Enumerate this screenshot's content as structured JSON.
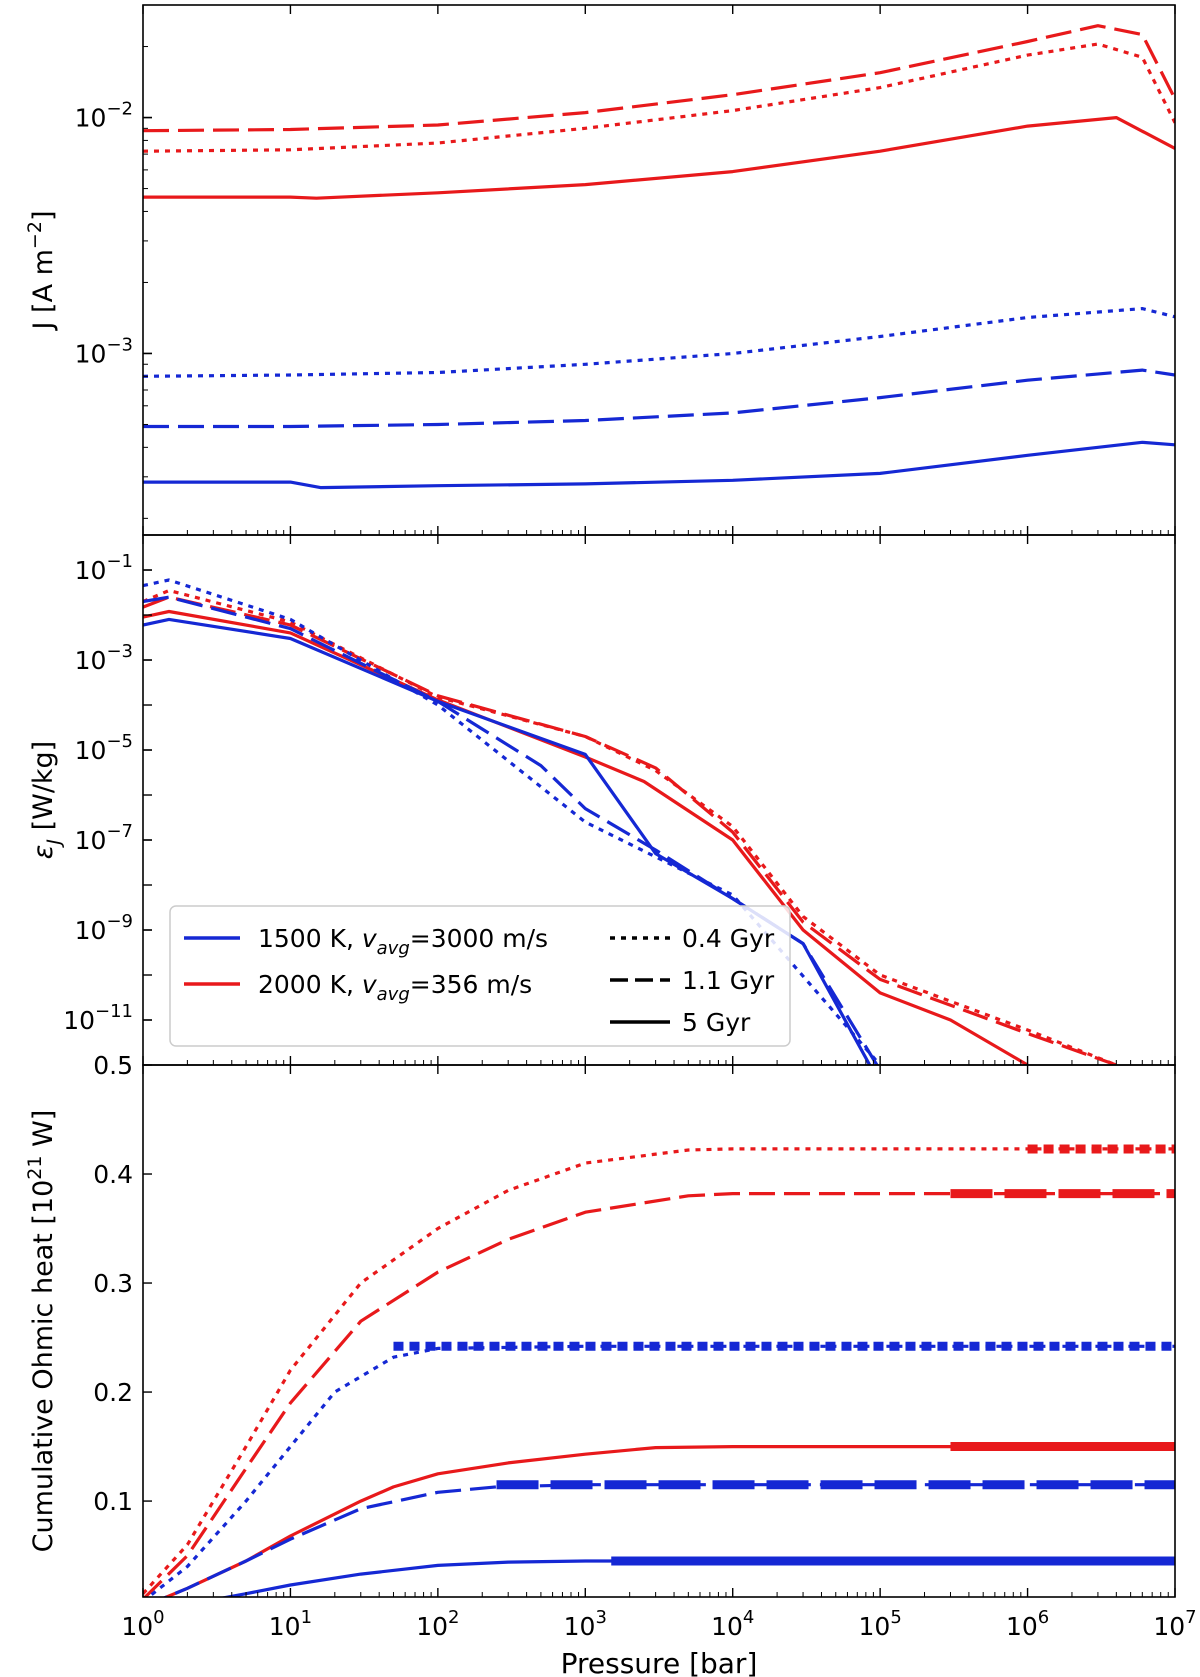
{
  "chart_data": [
    {
      "type": "line",
      "panel": "top",
      "xscale": "log",
      "yscale": "log",
      "xlim": [
        1,
        10000000
      ],
      "ylim": [
        0.00017,
        0.03
      ],
      "ylabel_main": "J [A m",
      "ylabel_sup": "−2",
      "ylabel_end": "]",
      "yticks": [
        {
          "value": 0.01,
          "base": "10",
          "exp": "−2"
        },
        {
          "value": 0.001,
          "base": "10",
          "exp": "−3"
        }
      ],
      "series": [
        {
          "name": "2000 K, 0.4 Gyr",
          "color": "#e8191b",
          "style": "dotted",
          "x": [
            1,
            10,
            100,
            1000,
            10000,
            100000,
            1000000,
            3000000,
            6000000,
            10000000
          ],
          "y": [
            0.0072,
            0.0073,
            0.0078,
            0.009,
            0.0107,
            0.0134,
            0.0184,
            0.0205,
            0.018,
            0.0095
          ]
        },
        {
          "name": "2000 K, 1.1 Gyr",
          "color": "#e8191b",
          "style": "dashed",
          "x": [
            1,
            10,
            100,
            1000,
            10000,
            100000,
            1000000,
            3000000,
            6000000,
            10000000
          ],
          "y": [
            0.0088,
            0.0089,
            0.0093,
            0.0105,
            0.0125,
            0.0155,
            0.021,
            0.0245,
            0.0225,
            0.012
          ]
        },
        {
          "name": "2000 K, 5 Gyr",
          "color": "#e8191b",
          "style": "solid",
          "x": [
            1,
            10,
            15,
            100,
            1000,
            10000,
            100000,
            1000000,
            4000000,
            10000000
          ],
          "y": [
            0.0046,
            0.0046,
            0.00455,
            0.0048,
            0.0052,
            0.0059,
            0.0072,
            0.0092,
            0.01,
            0.0074
          ]
        },
        {
          "name": "1500 K, 0.4 Gyr",
          "color": "#1528d4",
          "style": "dotted",
          "x": [
            1,
            10,
            100,
            1000,
            10000,
            100000,
            1000000,
            6000000,
            10000000
          ],
          "y": [
            0.0008,
            0.00081,
            0.00083,
            0.0009,
            0.001,
            0.00118,
            0.00142,
            0.00155,
            0.00143
          ]
        },
        {
          "name": "1500 K, 1.1 Gyr",
          "color": "#1528d4",
          "style": "dashed",
          "x": [
            1,
            10,
            100,
            1000,
            10000,
            100000,
            1000000,
            6000000,
            10000000
          ],
          "y": [
            0.00049,
            0.00049,
            0.0005,
            0.00052,
            0.00056,
            0.00065,
            0.00077,
            0.00085,
            0.00081
          ]
        },
        {
          "name": "1500 K, 5 Gyr",
          "color": "#1528d4",
          "style": "solid",
          "x": [
            1,
            10,
            16,
            100,
            1000,
            10000,
            100000,
            1000000,
            6000000,
            10000000
          ],
          "y": [
            0.000285,
            0.000285,
            0.00027,
            0.000275,
            0.00028,
            0.00029,
            0.00031,
            0.00037,
            0.00042,
            0.00041
          ]
        }
      ]
    },
    {
      "type": "line",
      "panel": "middle",
      "xscale": "log",
      "yscale": "log",
      "xlim": [
        1,
        10000000
      ],
      "ylim": [
        1e-12,
        0.6
      ],
      "ylabel_main": "ε",
      "ylabel_sub": "J",
      "ylabel_end": " [W/kg]",
      "yticks": [
        {
          "value": 0.1,
          "base": "10",
          "exp": "−1"
        },
        {
          "value": 0.001,
          "base": "10",
          "exp": "−3"
        },
        {
          "value": 1e-05,
          "base": "10",
          "exp": "−5"
        },
        {
          "value": 1e-07,
          "base": "10",
          "exp": "−7"
        },
        {
          "value": 1e-09,
          "base": "10",
          "exp": "−9"
        },
        {
          "value": 1e-11,
          "base": "10",
          "exp": "−11"
        }
      ],
      "top_label": "0.5",
      "series": [
        {
          "name": "2000 K, 0.4 Gyr",
          "color": "#e8191b",
          "style": "dotted",
          "x": [
            1,
            1.5,
            10,
            100,
            1000,
            3000,
            10000,
            30000,
            100000,
            1000000,
            4000000
          ],
          "y": [
            0.02,
            0.035,
            0.007,
            0.00015,
            2e-05,
            3.5e-06,
            2e-07,
            2e-09,
            1e-10,
            6e-12,
            1e-12
          ]
        },
        {
          "name": "2000 K, 1.1 Gyr",
          "color": "#e8191b",
          "style": "dashed",
          "x": [
            1,
            1.5,
            10,
            100,
            1000,
            3000,
            10000,
            30000,
            100000,
            1000000,
            4000000
          ],
          "y": [
            0.015,
            0.025,
            0.006,
            0.00016,
            2e-05,
            4e-06,
            1.5e-07,
            1.5e-09,
            8e-11,
            5e-12,
            1e-12
          ]
        },
        {
          "name": "2000 K, 5 Gyr",
          "color": "#e8191b",
          "style": "solid",
          "x": [
            1,
            1.5,
            10,
            100,
            1000,
            2500,
            10000,
            30000,
            100000,
            300000,
            1000000
          ],
          "y": [
            0.009,
            0.012,
            0.004,
            0.00013,
            7e-06,
            2e-06,
            1e-07,
            1e-09,
            4e-11,
            1e-11,
            1e-12
          ]
        },
        {
          "name": "1500 K, 0.4 Gyr",
          "color": "#1528d4",
          "style": "dotted",
          "x": [
            1,
            1.5,
            10,
            100,
            1000,
            10000,
            100000
          ],
          "y": [
            0.045,
            0.06,
            0.008,
            0.0001,
            2.5e-07,
            6e-09,
            1e-12
          ]
        },
        {
          "name": "1500 K, 1.1 Gyr",
          "color": "#1528d4",
          "style": "dashed",
          "x": [
            1,
            1.5,
            10,
            100,
            500,
            1000,
            3000,
            10000,
            30000,
            95000
          ],
          "y": [
            0.02,
            0.025,
            0.005,
            0.00012,
            4.5e-06,
            5e-07,
            6e-08,
            5e-09,
            5e-10,
            1e-12
          ]
        },
        {
          "name": "1500 K, 5 Gyr",
          "color": "#1528d4",
          "style": "solid",
          "x": [
            1,
            1.5,
            10,
            100,
            1000,
            3000,
            10000,
            30000,
            85000
          ],
          "y": [
            0.006,
            0.008,
            0.003,
            0.00012,
            8e-06,
            5e-08,
            5e-09,
            5e-10,
            1e-12
          ]
        }
      ],
      "legend": {
        "placement": "bottom-left",
        "models": [
          {
            "color": "#1528d4",
            "label_pre": "1500 K, ",
            "label_v": "v",
            "label_sub": "avg",
            "label_post": "=3000 m/s"
          },
          {
            "color": "#e8191b",
            "label_pre": "2000 K, ",
            "label_v": "v",
            "label_sub": "avg",
            "label_post": "=356 m/s"
          }
        ],
        "ages": [
          {
            "style": "dotted",
            "label": "0.4 Gyr"
          },
          {
            "style": "dashed",
            "label": "1.1 Gyr"
          },
          {
            "style": "solid",
            "label": "5 Gyr"
          }
        ]
      }
    },
    {
      "type": "line",
      "panel": "bottom",
      "xscale": "log",
      "yscale": "linear",
      "xlim": [
        1,
        10000000
      ],
      "ylim": [
        0.012,
        0.5
      ],
      "ylabel_main": "Cumulative Ohmic heat [10",
      "ylabel_sup": "21",
      "ylabel_end": " W]",
      "xlabel": "Pressure [bar]",
      "yticks": [
        {
          "value": 0.1,
          "label": "0.1"
        },
        {
          "value": 0.2,
          "label": "0.2"
        },
        {
          "value": 0.3,
          "label": "0.3"
        },
        {
          "value": 0.4,
          "label": "0.4"
        }
      ],
      "xticks": [
        {
          "value": 1,
          "base": "10",
          "exp": "0"
        },
        {
          "value": 10,
          "base": "10",
          "exp": "1"
        },
        {
          "value": 100,
          "base": "10",
          "exp": "2"
        },
        {
          "value": 1000,
          "base": "10",
          "exp": "3"
        },
        {
          "value": 10000,
          "base": "10",
          "exp": "4"
        },
        {
          "value": 100000,
          "base": "10",
          "exp": "5"
        },
        {
          "value": 1000000,
          "base": "10",
          "exp": "6"
        },
        {
          "value": 10000000,
          "base": "10",
          "exp": "7"
        }
      ],
      "series": [
        {
          "name": "2000 K, 0.4 Gyr",
          "color": "#e8191b",
          "style": "dotted",
          "thick_from": 1000000,
          "x": [
            1,
            2,
            5,
            10,
            30,
            100,
            300,
            1000,
            5000,
            10000,
            1000000,
            10000000
          ],
          "y": [
            0.015,
            0.06,
            0.15,
            0.22,
            0.3,
            0.35,
            0.385,
            0.41,
            0.422,
            0.423,
            0.423,
            0.423
          ]
        },
        {
          "name": "2000 K, 1.1 Gyr",
          "color": "#e8191b",
          "style": "dashed",
          "thick_from": 300000,
          "x": [
            1,
            2,
            5,
            10,
            30,
            100,
            300,
            1000,
            5000,
            10000,
            300000,
            10000000
          ],
          "y": [
            0.01,
            0.05,
            0.13,
            0.19,
            0.265,
            0.31,
            0.34,
            0.365,
            0.38,
            0.382,
            0.382,
            0.382
          ]
        },
        {
          "name": "1500 K, 0.4 Gyr",
          "color": "#1528d4",
          "style": "dotted",
          "thick_from": 50,
          "x": [
            1,
            2,
            5,
            10,
            20,
            50,
            100,
            1000,
            10000,
            10000000
          ],
          "y": [
            0.008,
            0.04,
            0.1,
            0.15,
            0.2,
            0.232,
            0.24,
            0.242,
            0.242,
            0.242
          ]
        },
        {
          "name": "2000 K, 5 Gyr",
          "color": "#e8191b",
          "style": "solid",
          "thick_from": 300000,
          "x": [
            1,
            2,
            5,
            10,
            30,
            50,
            100,
            300,
            1000,
            3000,
            10000,
            300000,
            10000000
          ],
          "y": [
            0.003,
            0.02,
            0.045,
            0.068,
            0.1,
            0.113,
            0.125,
            0.135,
            0.143,
            0.149,
            0.15,
            0.15,
            0.15
          ]
        },
        {
          "name": "1500 K, 1.1 Gyr",
          "color": "#1528d4",
          "style": "dashed",
          "thick_from": 250,
          "x": [
            1,
            2,
            5,
            10,
            30,
            100,
            250,
            1000,
            10000000
          ],
          "y": [
            0.003,
            0.02,
            0.045,
            0.065,
            0.093,
            0.108,
            0.113,
            0.115,
            0.115
          ]
        },
        {
          "name": "1500 K, 5 Gyr",
          "color": "#1528d4",
          "style": "solid",
          "thick_from": 1500,
          "x": [
            2,
            5,
            10,
            30,
            100,
            300,
            1000,
            1500,
            10000000
          ],
          "y": [
            0.005,
            0.015,
            0.023,
            0.033,
            0.041,
            0.044,
            0.045,
            0.045,
            0.045
          ]
        }
      ]
    }
  ]
}
